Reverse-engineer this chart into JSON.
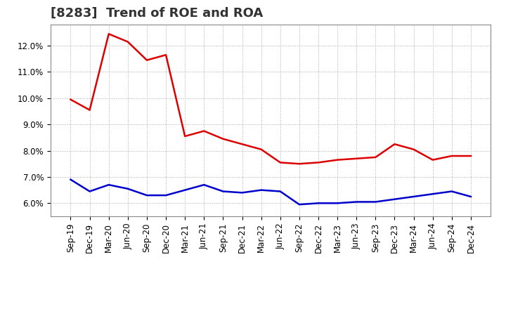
{
  "title": "[8283]  Trend of ROE and ROA",
  "labels": [
    "Sep-19",
    "Dec-19",
    "Mar-20",
    "Jun-20",
    "Sep-20",
    "Dec-20",
    "Mar-21",
    "Jun-21",
    "Sep-21",
    "Dec-21",
    "Mar-22",
    "Jun-22",
    "Sep-22",
    "Dec-22",
    "Mar-23",
    "Jun-23",
    "Sep-23",
    "Dec-23",
    "Mar-24",
    "Jun-24",
    "Sep-24",
    "Dec-24"
  ],
  "roe": [
    9.95,
    9.55,
    12.45,
    12.15,
    11.45,
    11.65,
    8.55,
    8.75,
    8.45,
    8.25,
    8.05,
    7.55,
    7.5,
    7.55,
    7.65,
    7.7,
    7.75,
    8.25,
    8.05,
    7.65,
    7.8,
    7.8
  ],
  "roa": [
    6.9,
    6.45,
    6.7,
    6.55,
    6.3,
    6.3,
    6.5,
    6.7,
    6.45,
    6.4,
    6.5,
    6.45,
    5.95,
    6.0,
    6.0,
    6.05,
    6.05,
    6.15,
    6.25,
    6.35,
    6.45,
    6.25
  ],
  "roe_color": "#dd0000",
  "roa_color": "#0000cc",
  "background_color": "#ffffff",
  "plot_bg_color": "#ffffff",
  "grid_color": "#aaaaaa",
  "ylim": [
    5.5,
    12.8
  ],
  "yticks": [
    6.0,
    7.0,
    8.0,
    9.0,
    10.0,
    11.0,
    12.0
  ],
  "title_fontsize": 13,
  "legend_fontsize": 11,
  "tick_fontsize": 8.5
}
